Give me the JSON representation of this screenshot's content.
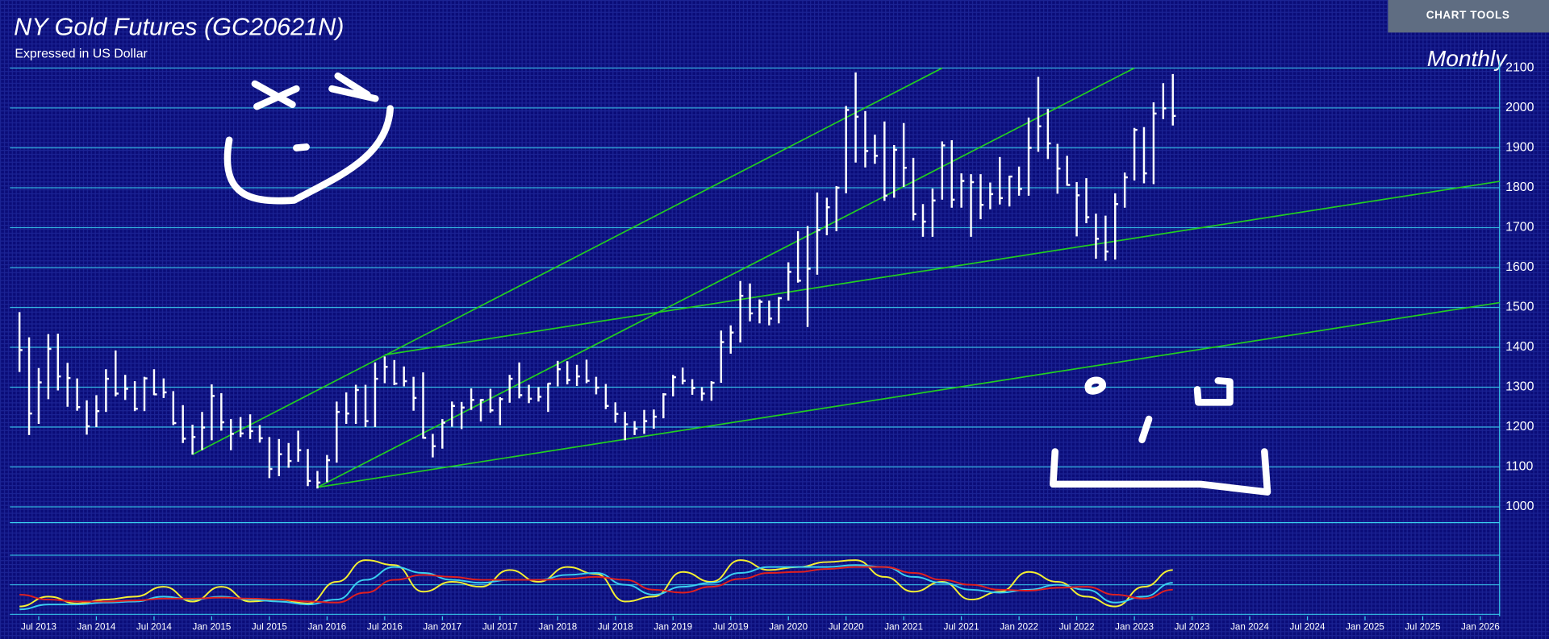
{
  "chart_data": [
    {
      "type": "ohlc",
      "title": "NY Gold Futures (GC20621N)",
      "subtitle": "Expressed in US Dollar",
      "period": "Monthly",
      "color": "#ffffff",
      "x": [
        "2013-05",
        "2013-06",
        "2013-07",
        "2013-08",
        "2013-09",
        "2013-10",
        "2013-11",
        "2013-12",
        "2014-01",
        "2014-02",
        "2014-03",
        "2014-04",
        "2014-05",
        "2014-06",
        "2014-07",
        "2014-08",
        "2014-09",
        "2014-10",
        "2014-11",
        "2014-12",
        "2015-01",
        "2015-02",
        "2015-03",
        "2015-04",
        "2015-05",
        "2015-06",
        "2015-07",
        "2015-08",
        "2015-09",
        "2015-10",
        "2015-11",
        "2015-12",
        "2016-01",
        "2016-02",
        "2016-03",
        "2016-04",
        "2016-05",
        "2016-06",
        "2016-07",
        "2016-08",
        "2016-09",
        "2016-10",
        "2016-11",
        "2016-12",
        "2017-01",
        "2017-02",
        "2017-03",
        "2017-04",
        "2017-05",
        "2017-06",
        "2017-07",
        "2017-08",
        "2017-09",
        "2017-10",
        "2017-11",
        "2017-12",
        "2018-01",
        "2018-02",
        "2018-03",
        "2018-04",
        "2018-05",
        "2018-06",
        "2018-07",
        "2018-08",
        "2018-09",
        "2018-10",
        "2018-11",
        "2018-12",
        "2019-01",
        "2019-02",
        "2019-03",
        "2019-04",
        "2019-05",
        "2019-06",
        "2019-07",
        "2019-08",
        "2019-09",
        "2019-10",
        "2019-11",
        "2019-12",
        "2020-01",
        "2020-02",
        "2020-03",
        "2020-04",
        "2020-05",
        "2020-06",
        "2020-07",
        "2020-08",
        "2020-09",
        "2020-10",
        "2020-11",
        "2020-12",
        "2021-01",
        "2021-02",
        "2021-03",
        "2021-04",
        "2021-05",
        "2021-06",
        "2021-07",
        "2021-08",
        "2021-09",
        "2021-10",
        "2021-11",
        "2021-12",
        "2022-01",
        "2022-02",
        "2022-03",
        "2022-04",
        "2022-05",
        "2022-06",
        "2022-07",
        "2022-08",
        "2022-09",
        "2022-10",
        "2022-11",
        "2022-12",
        "2023-01",
        "2023-02",
        "2023-03",
        "2023-04",
        "2023-05"
      ],
      "high": [
        1488,
        1425,
        1348,
        1433,
        1434,
        1361,
        1322,
        1267,
        1280,
        1345,
        1392,
        1331,
        1315,
        1326,
        1345,
        1322,
        1290,
        1255,
        1206,
        1238,
        1307,
        1285,
        1220,
        1225,
        1232,
        1205,
        1175,
        1170,
        1160,
        1191,
        1145,
        1090,
        1130,
        1264,
        1287,
        1306,
        1306,
        1362,
        1377,
        1368,
        1352,
        1326,
        1337,
        1183,
        1220,
        1264,
        1263,
        1297,
        1270,
        1296,
        1275,
        1331,
        1362,
        1306,
        1300,
        1310,
        1366,
        1365,
        1356,
        1369,
        1326,
        1308,
        1262,
        1238,
        1215,
        1243,
        1244,
        1285,
        1331,
        1349,
        1320,
        1300,
        1315,
        1442,
        1455,
        1566,
        1560,
        1520,
        1517,
        1526,
        1613,
        1691,
        1704,
        1788,
        1775,
        1804,
        2005,
        2089,
        1992,
        1933,
        1966,
        1907,
        1962,
        1875,
        1759,
        1798,
        1916,
        1919,
        1836,
        1834,
        1834,
        1813,
        1877,
        1830,
        1853,
        1976,
        2078,
        1998,
        1910,
        1880,
        1814,
        1824,
        1735,
        1730,
        1786,
        1838,
        1950,
        1952,
        2014,
        2062,
        2085
      ],
      "low": [
        1338,
        1180,
        1208,
        1270,
        1292,
        1251,
        1241,
        1181,
        1200,
        1238,
        1277,
        1268,
        1240,
        1240,
        1280,
        1273,
        1205,
        1160,
        1131,
        1142,
        1167,
        1191,
        1142,
        1175,
        1170,
        1161,
        1072,
        1077,
        1098,
        1113,
        1052,
        1046,
        1062,
        1111,
        1208,
        1208,
        1200,
        1200,
        1310,
        1305,
        1302,
        1241,
        1171,
        1124,
        1146,
        1201,
        1195,
        1243,
        1214,
        1236,
        1205,
        1261,
        1272,
        1260,
        1264,
        1238,
        1302,
        1307,
        1303,
        1310,
        1282,
        1245,
        1211,
        1167,
        1180,
        1183,
        1196,
        1222,
        1277,
        1307,
        1281,
        1266,
        1266,
        1311,
        1384,
        1412,
        1465,
        1460,
        1455,
        1460,
        1517,
        1562,
        1451,
        1582,
        1681,
        1691,
        1786,
        1863,
        1851,
        1860,
        1767,
        1775,
        1802,
        1718,
        1677,
        1677,
        1770,
        1750,
        1750,
        1677,
        1721,
        1746,
        1758,
        1753,
        1780,
        1780,
        1890,
        1872,
        1785,
        1805,
        1678,
        1711,
        1622,
        1617,
        1620,
        1750,
        1818,
        1811,
        1809,
        1972,
        1956
      ],
      "close": [
        1393,
        1234,
        1312,
        1396,
        1327,
        1323,
        1250,
        1202,
        1240,
        1321,
        1284,
        1296,
        1246,
        1322,
        1282,
        1287,
        1210,
        1171,
        1175,
        1199,
        1278,
        1212,
        1183,
        1184,
        1190,
        1172,
        1095,
        1132,
        1115,
        1142,
        1065,
        1061,
        1117,
        1238,
        1234,
        1293,
        1215,
        1321,
        1351,
        1309,
        1315,
        1273,
        1173,
        1152,
        1211,
        1253,
        1249,
        1268,
        1268,
        1242,
        1270,
        1321,
        1280,
        1271,
        1276,
        1309,
        1345,
        1318,
        1327,
        1316,
        1299,
        1253,
        1233,
        1207,
        1196,
        1215,
        1226,
        1282,
        1325,
        1316,
        1298,
        1284,
        1311,
        1413,
        1437,
        1529,
        1485,
        1514,
        1472,
        1523,
        1589,
        1567,
        1597,
        1694,
        1751,
        1800,
        1995,
        1978,
        1892,
        1880,
        1780,
        1895,
        1850,
        1734,
        1715,
        1768,
        1906,
        1770,
        1817,
        1814,
        1757,
        1784,
        1774,
        1828,
        1797,
        1900,
        1954,
        1911,
        1848,
        1807,
        1781,
        1726,
        1672,
        1640,
        1759,
        1826,
        1945,
        1836,
        1986,
        1999,
        1980
      ],
      "trendlines": [
        {
          "x": [
            "2014-11",
            "2021-05"
          ],
          "y": [
            1131,
            2100
          ],
          "color": "#22cc22"
        },
        {
          "x": [
            "2015-12",
            "2023-01"
          ],
          "y": [
            1049,
            2100
          ],
          "color": "#22cc22"
        },
        {
          "x": [
            "2016-07",
            "2026-03"
          ],
          "y": [
            1381,
            1816
          ],
          "color": "#22cc22"
        },
        {
          "x": [
            "2015-12",
            "2026-03"
          ],
          "y": [
            1049,
            1512
          ],
          "color": "#22cc22"
        }
      ],
      "xlim": [
        "2013-04",
        "2026-03"
      ],
      "xticks": [
        {
          "value": "2013-07",
          "label": "Jul 2013"
        },
        {
          "value": "2014-01",
          "label": "Jan 2014"
        },
        {
          "value": "2014-07",
          "label": "Jul 2014"
        },
        {
          "value": "2015-01",
          "label": "Jan 2015"
        },
        {
          "value": "2015-07",
          "label": "Jul 2015"
        },
        {
          "value": "2016-01",
          "label": "Jan 2016"
        },
        {
          "value": "2016-07",
          "label": "Jul 2016"
        },
        {
          "value": "2017-01",
          "label": "Jan 2017"
        },
        {
          "value": "2017-07",
          "label": "Jul 2017"
        },
        {
          "value": "2018-01",
          "label": "Jan 2018"
        },
        {
          "value": "2018-07",
          "label": "Jul 2018"
        },
        {
          "value": "2019-01",
          "label": "Jan 2019"
        },
        {
          "value": "2019-07",
          "label": "Jul 2019"
        },
        {
          "value": "2020-01",
          "label": "Jan 2020"
        },
        {
          "value": "2020-07",
          "label": "Jul 2020"
        },
        {
          "value": "2021-01",
          "label": "Jan 2021"
        },
        {
          "value": "2021-07",
          "label": "Jul 2021"
        },
        {
          "value": "2022-01",
          "label": "Jan 2022"
        },
        {
          "value": "2022-07",
          "label": "Jul 2022"
        },
        {
          "value": "2023-01",
          "label": "Jan 2023"
        },
        {
          "value": "2023-07",
          "label": "Jul 2023"
        },
        {
          "value": "2024-01",
          "label": "Jan 2024"
        },
        {
          "value": "2024-07",
          "label": "Jul 2024"
        },
        {
          "value": "2025-01",
          "label": "Jan 2025"
        },
        {
          "value": "2025-07",
          "label": "Jul 2025"
        },
        {
          "value": "2026-01",
          "label": "Jan 2026"
        }
      ],
      "ylim": [
        1000,
        2100
      ],
      "yticks": [
        1000,
        1100,
        1200,
        1300,
        1400,
        1500,
        1600,
        1700,
        1800,
        1900,
        2000,
        2100
      ],
      "grid": true
    },
    {
      "type": "line",
      "x": [
        "2013-05",
        "2013-08",
        "2013-11",
        "2014-02",
        "2014-05",
        "2014-08",
        "2014-11",
        "2015-02",
        "2015-05",
        "2015-08",
        "2015-11",
        "2016-02",
        "2016-05",
        "2016-08",
        "2016-11",
        "2017-02",
        "2017-05",
        "2017-08",
        "2017-11",
        "2018-02",
        "2018-05",
        "2018-08",
        "2018-11",
        "2019-02",
        "2019-05",
        "2019-08",
        "2019-11",
        "2020-02",
        "2020-05",
        "2020-08",
        "2020-11",
        "2021-02",
        "2021-05",
        "2021-08",
        "2021-11",
        "2022-02",
        "2022-05",
        "2022-08",
        "2022-11",
        "2023-02",
        "2023-05"
      ],
      "series": [
        {
          "color": "#f5f032",
          "values": [
            28,
            38,
            31,
            35,
            38,
            48,
            33,
            48,
            33,
            35,
            31,
            53,
            75,
            70,
            43,
            53,
            48,
            65,
            53,
            68,
            61,
            33,
            38,
            63,
            53,
            75,
            65,
            68,
            73,
            75,
            58,
            43,
            53,
            35,
            43,
            63,
            53,
            38,
            28,
            48,
            65
          ]
        },
        {
          "color": "#3ad0f0",
          "values": [
            25,
            30,
            30,
            32,
            33,
            38,
            35,
            38,
            35,
            33,
            30,
            35,
            55,
            68,
            62,
            55,
            52,
            55,
            55,
            60,
            62,
            50,
            40,
            48,
            52,
            62,
            68,
            68,
            68,
            70,
            68,
            58,
            52,
            45,
            42,
            45,
            50,
            45,
            32,
            38,
            52
          ]
        },
        {
          "color": "#e02020",
          "values": [
            40,
            35,
            33,
            33,
            34,
            36,
            36,
            37,
            36,
            35,
            33,
            32,
            42,
            55,
            60,
            58,
            55,
            55,
            55,
            56,
            58,
            55,
            45,
            42,
            48,
            56,
            62,
            63,
            66,
            68,
            68,
            62,
            55,
            50,
            45,
            44,
            47,
            48,
            40,
            36,
            45
          ]
        }
      ],
      "ylim": [
        0,
        100
      ],
      "yticks": [
        20,
        50,
        80
      ],
      "grid": true
    }
  ],
  "toolbar": {
    "button": "CHART TOOLS"
  }
}
